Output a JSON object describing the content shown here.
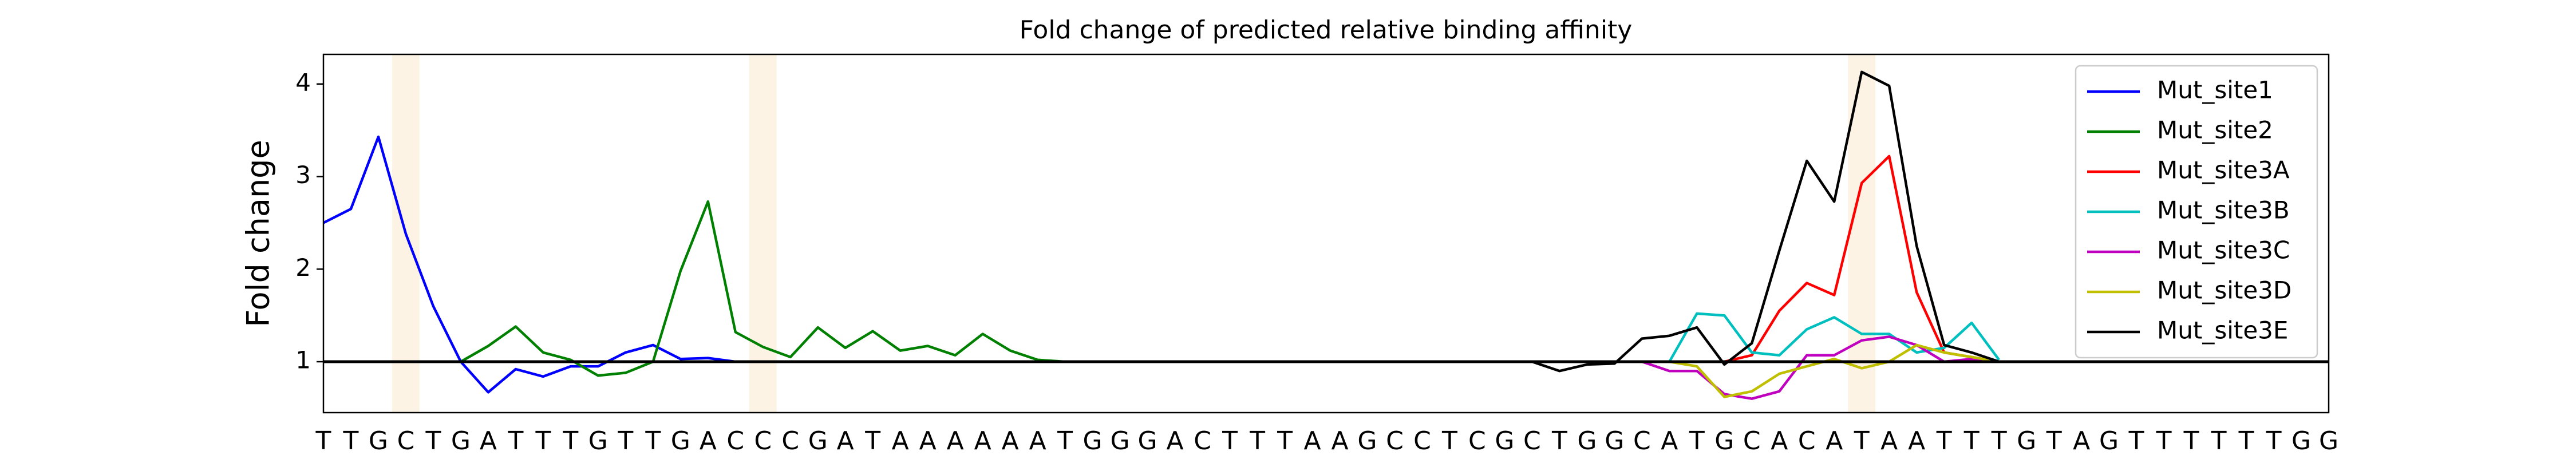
{
  "chart_data": {
    "type": "line",
    "title": "Fold change of predicted relative binding affinity",
    "y_label": "Fold change",
    "categories": [
      "T",
      "T",
      "G",
      "C",
      "T",
      "G",
      "A",
      "T",
      "T",
      "T",
      "G",
      "T",
      "T",
      "G",
      "A",
      "C",
      "C",
      "C",
      "G",
      "A",
      "T",
      "A",
      "A",
      "A",
      "A",
      "A",
      "A",
      "T",
      "G",
      "G",
      "G",
      "A",
      "C",
      "T",
      "T",
      "T",
      "A",
      "A",
      "G",
      "C",
      "C",
      "T",
      "C",
      "G",
      "C",
      "T",
      "G",
      "G",
      "C",
      "A",
      "T",
      "G",
      "C",
      "A",
      "C",
      "A",
      "T",
      "A",
      "A",
      "T",
      "T",
      "T",
      "G",
      "T",
      "A",
      "G",
      "T",
      "T",
      "T",
      "T",
      "T",
      "T",
      "G",
      "G"
    ],
    "ylim": [
      0.45,
      4.32
    ],
    "yticks": [
      1,
      2,
      3,
      4
    ],
    "hline": 1,
    "hline_color": "#000000",
    "highlight_x": [
      3,
      16,
      56
    ],
    "highlight_color": "#fcf3e4",
    "legend": "upper right",
    "series": [
      {
        "name": "Mut_site1",
        "color": "#0000ff",
        "values": [
          2.5,
          2.65,
          3.43,
          2.38,
          1.6,
          1.0,
          0.67,
          0.92,
          0.84,
          0.95,
          0.95,
          1.1,
          1.18,
          1.03,
          1.04,
          1.0,
          null,
          null,
          null,
          null,
          null,
          null,
          null,
          null,
          null,
          null,
          null,
          null,
          null,
          null,
          null,
          null,
          null,
          null,
          null,
          null,
          null,
          null,
          null,
          null,
          null,
          null,
          null,
          null,
          null,
          null,
          null,
          null,
          null,
          null,
          null,
          null,
          null,
          null,
          null,
          null,
          null,
          null,
          null,
          null,
          null,
          null,
          null,
          null,
          null,
          null,
          null,
          null,
          null,
          null,
          null,
          null,
          null,
          null
        ]
      },
      {
        "name": "Mut_site2",
        "color": "#008000",
        "values": [
          null,
          null,
          null,
          null,
          null,
          1.0,
          1.17,
          1.38,
          1.1,
          1.02,
          0.85,
          0.88,
          1.0,
          1.98,
          2.73,
          1.32,
          1.16,
          1.05,
          1.37,
          1.15,
          1.33,
          1.12,
          1.17,
          1.07,
          1.3,
          1.12,
          1.02,
          1.0,
          null,
          null,
          null,
          null,
          null,
          null,
          null,
          null,
          null,
          null,
          null,
          null,
          null,
          null,
          null,
          null,
          null,
          null,
          null,
          null,
          null,
          null,
          null,
          null,
          null,
          null,
          null,
          null,
          null,
          null,
          null,
          null,
          null,
          null,
          null,
          null,
          null,
          null,
          null,
          null,
          null,
          null,
          null,
          null,
          null,
          null
        ]
      },
      {
        "name": "Mut_site3A",
        "color": "#ff0000",
        "values": [
          null,
          null,
          null,
          null,
          null,
          null,
          null,
          null,
          null,
          null,
          null,
          null,
          null,
          null,
          null,
          null,
          null,
          null,
          null,
          null,
          null,
          null,
          null,
          null,
          null,
          null,
          null,
          null,
          null,
          null,
          null,
          null,
          null,
          null,
          null,
          null,
          null,
          null,
          null,
          null,
          null,
          null,
          null,
          null,
          1.0,
          1.0,
          1.0,
          1.0,
          1.0,
          1.0,
          1.0,
          1.0,
          1.07,
          1.55,
          1.85,
          1.72,
          2.93,
          3.22,
          1.75,
          1.1,
          1.05,
          1.0,
          null,
          null,
          null,
          null,
          null,
          null,
          null,
          null,
          null,
          null,
          null,
          null
        ]
      },
      {
        "name": "Mut_site3B",
        "color": "#00bfbf",
        "values": [
          null,
          null,
          null,
          null,
          null,
          null,
          null,
          null,
          null,
          null,
          null,
          null,
          null,
          null,
          null,
          null,
          null,
          null,
          null,
          null,
          null,
          null,
          null,
          null,
          null,
          null,
          null,
          null,
          null,
          null,
          null,
          null,
          null,
          null,
          null,
          null,
          null,
          null,
          null,
          null,
          null,
          null,
          null,
          null,
          1.0,
          1.0,
          1.0,
          1.0,
          1.0,
          1.0,
          1.52,
          1.5,
          1.1,
          1.07,
          1.35,
          1.48,
          1.3,
          1.3,
          1.1,
          1.15,
          1.42,
          1.02,
          null,
          null,
          null,
          null,
          null,
          null,
          null,
          null,
          null,
          null,
          null,
          null
        ]
      },
      {
        "name": "Mut_site3C",
        "color": "#bf00bf",
        "values": [
          null,
          null,
          null,
          null,
          null,
          null,
          null,
          null,
          null,
          null,
          null,
          null,
          null,
          null,
          null,
          null,
          null,
          null,
          null,
          null,
          null,
          null,
          null,
          null,
          null,
          null,
          null,
          null,
          null,
          null,
          null,
          null,
          null,
          null,
          null,
          null,
          null,
          null,
          null,
          null,
          null,
          null,
          null,
          null,
          1.0,
          1.0,
          1.0,
          1.0,
          1.0,
          0.9,
          0.9,
          0.65,
          0.6,
          0.68,
          1.07,
          1.07,
          1.23,
          1.27,
          1.18,
          1.0,
          1.03,
          1.0,
          null,
          null,
          null,
          null,
          null,
          null,
          null,
          null,
          null,
          null,
          null,
          null
        ]
      },
      {
        "name": "Mut_site3D",
        "color": "#bfbf00",
        "values": [
          null,
          null,
          null,
          null,
          null,
          null,
          null,
          null,
          null,
          null,
          null,
          null,
          null,
          null,
          null,
          null,
          null,
          null,
          null,
          null,
          null,
          null,
          null,
          null,
          null,
          null,
          null,
          null,
          null,
          null,
          null,
          null,
          null,
          null,
          null,
          null,
          null,
          null,
          null,
          null,
          null,
          null,
          null,
          null,
          1.0,
          1.0,
          1.0,
          1.0,
          1.0,
          1.0,
          0.95,
          0.62,
          0.68,
          0.87,
          0.95,
          1.03,
          0.93,
          1.0,
          1.18,
          1.1,
          1.05,
          1.0,
          null,
          null,
          null,
          null,
          null,
          null,
          null,
          null,
          null,
          null,
          null,
          null
        ]
      },
      {
        "name": "Mut_site3E",
        "color": "#000000",
        "values": [
          null,
          null,
          null,
          null,
          null,
          null,
          null,
          null,
          null,
          null,
          null,
          null,
          null,
          null,
          null,
          null,
          null,
          null,
          null,
          null,
          null,
          null,
          null,
          null,
          null,
          null,
          null,
          null,
          null,
          null,
          null,
          null,
          null,
          null,
          null,
          null,
          null,
          null,
          null,
          null,
          null,
          null,
          null,
          null,
          1.0,
          0.9,
          0.97,
          0.98,
          1.25,
          1.28,
          1.37,
          0.97,
          1.2,
          2.2,
          3.17,
          2.73,
          4.13,
          3.98,
          2.25,
          1.18,
          1.1,
          1.0,
          null,
          null,
          null,
          null,
          null,
          null,
          null,
          null,
          null,
          null,
          null,
          null
        ]
      }
    ]
  }
}
